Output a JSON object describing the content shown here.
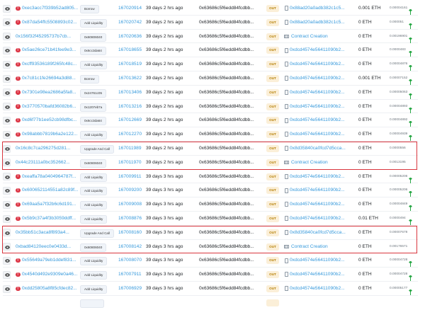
{
  "colors": {
    "link": "#3498db",
    "error": "#dc3545",
    "out_badge_bg": "#fbefd8",
    "out_badge_text": "#b47d00",
    "highlight": "#d9363e",
    "gas_icon": "#28a745"
  },
  "direction_label": "OUT",
  "from_address": "0x63686c5f6edd84fcdbb...",
  "highlighted_rows": [
    [
      10,
      11
    ],
    [
      16,
      17
    ]
  ],
  "rows": [
    {
      "error": true,
      "hash": "0xec3acc7f339b52ad805...",
      "method": "Borrow",
      "block": "167020914",
      "age": "39 days 2 hrs ago",
      "to": "0x88ad20a0adb382c1c5...",
      "to_type": "contract",
      "value": "0.001 ETH",
      "fee": "0.00004161",
      "gas_icon": true
    },
    {
      "error": true,
      "hash": "0x87da54ffc5508893c02...",
      "method": "Add Liquidity",
      "block": "167020742",
      "age": "39 days 2 hrs ago",
      "to": "0x88ad20a0adb382c1c5...",
      "to_type": "contract",
      "value": "0 ETH",
      "fee": "0.000051",
      "gas_icon": true
    },
    {
      "error": false,
      "hash": "0x156f32f45295737b7cb...",
      "method": "0x60806040",
      "block": "167020636",
      "age": "39 days 2 hrs ago",
      "to": "Contract Creation",
      "to_type": "creation",
      "value": "0 ETH",
      "fee": "0.00196901",
      "gas_icon": true
    },
    {
      "error": true,
      "hash": "0x5ae26ce71b41fee9e3...",
      "method": "0x6cc3da64",
      "block": "167018655",
      "age": "39 days 2 hrs ago",
      "to": "0xdcd4574e56411090b2...",
      "to_type": "contract",
      "value": "0 ETH",
      "fee": "0.0000483",
      "gas_icon": true
    },
    {
      "error": true,
      "hash": "0xcff93536189f265fc48c...",
      "method": "Add Liquidity",
      "block": "167018519",
      "age": "39 days 2 hrs ago",
      "to": "0xdcd4574e56411090b2...",
      "to_type": "contract",
      "value": "0 ETH",
      "fee": "0.00004876",
      "gas_icon": true
    },
    {
      "error": true,
      "hash": "0x7c81c1fe26694a3d88...",
      "method": "Borrow",
      "block": "167013622",
      "age": "39 days 2 hrs ago",
      "to": "0xdcd4574e56411090b2...",
      "to_type": "contract",
      "value": "0.001 ETH",
      "fee": "0.00007152",
      "gas_icon": true
    },
    {
      "error": true,
      "hash": "0x7301e98ea2686a5fa8...",
      "method": "0x24761c05",
      "block": "167013406",
      "age": "39 days 2 hrs ago",
      "to": "0xdcd4574e56411090b2...",
      "to_type": "contract",
      "value": "0 ETH",
      "fee": "0.00005063",
      "gas_icon": true
    },
    {
      "error": true,
      "hash": "0x3770570bafd36082b6...",
      "method": "0x1207eb7a",
      "block": "167013216",
      "age": "39 days 2 hrs ago",
      "to": "0xdcd4574e56411090b2...",
      "to_type": "contract",
      "value": "0 ETH",
      "fee": "0.00004893",
      "gas_icon": true
    },
    {
      "error": true,
      "hash": "0xd6f77b1ee52cb98dfbc...",
      "method": "0x6cc3da64",
      "block": "167012669",
      "age": "39 days 2 hrs ago",
      "to": "0xdcd4574e56411090b2...",
      "to_type": "contract",
      "value": "0 ETH",
      "fee": "0.00004892",
      "gas_icon": true
    },
    {
      "error": true,
      "hash": "0x98abbb7819b6a2e122...",
      "method": "Add Liquidity",
      "block": "167012270",
      "age": "39 days 2 hrs ago",
      "to": "0xdcd4574e56411090b2...",
      "to_type": "contract",
      "value": "0 ETH",
      "fee": "0.00004939",
      "gas_icon": true
    },
    {
      "error": false,
      "hash": "0x16c8c7ca296275d281...",
      "method": "Upgrade And Call",
      "block": "167011989",
      "age": "39 days 2 hrs ago",
      "to": "0x8d35840ca0fcd7d5cca...",
      "to_type": "contract",
      "value": "0 ETH",
      "fee": "0.0000556",
      "gas_icon": false
    },
    {
      "error": false,
      "hash": "0x44c23111a0bc352662...",
      "method": "0x60806040",
      "block": "167011970",
      "age": "39 days 2 hrs ago",
      "to": "Contract Creation",
      "to_type": "creation",
      "value": "0 ETH",
      "fee": "0.0013195",
      "gas_icon": false
    },
    {
      "error": true,
      "hash": "0xeaffa78a0404964787f...",
      "method": "Add Liquidity",
      "block": "167009911",
      "age": "39 days 3 hrs ago",
      "to": "0xdcd4574e56411090b2...",
      "to_type": "contract",
      "value": "0 ETH",
      "fee": "0.00005206",
      "gas_icon": true
    },
    {
      "error": true,
      "hash": "0x600652114551a82c89f...",
      "method": "Add Liquidity",
      "block": "167009200",
      "age": "39 days 3 hrs ago",
      "to": "0xdcd4574e56411090b2...",
      "to_type": "contract",
      "value": "0 ETH",
      "fee": "0.00005206",
      "gas_icon": true
    },
    {
      "error": true,
      "hash": "0x69aa5a7f32b6c6d191...",
      "method": "Add Liquidity",
      "block": "167009008",
      "age": "39 days 3 hrs ago",
      "to": "0xdcd4574e56411090b2...",
      "to_type": "contract",
      "value": "0 ETH",
      "fee": "0.00004849",
      "gas_icon": true
    },
    {
      "error": true,
      "hash": "0x5b9c37a4f3b3059ddff...",
      "method": "Add Liquidity",
      "block": "167008876",
      "age": "39 days 3 hrs ago",
      "to": "0xdcd4574e56411090b2...",
      "to_type": "contract",
      "value": "0.01 ETH",
      "fee": "0.0000494",
      "gas_icon": true
    },
    {
      "error": false,
      "hash": "0x35bb51c3aca8f893a4...",
      "method": "Upgrade And Call",
      "block": "167008160",
      "age": "39 days 3 hrs ago",
      "to": "0x8d35840ca0fcd7d5cca...",
      "to_type": "contract",
      "value": "0 ETH",
      "fee": "0.00007678",
      "gas_icon": false
    },
    {
      "error": false,
      "hash": "0xbad84120eec0e0433d...",
      "method": "0x60806040",
      "block": "167008142",
      "age": "39 days 3 hrs ago",
      "to": "Contract Creation",
      "to_type": "creation",
      "value": "0 ETH",
      "fee": "0.00176571",
      "gas_icon": false
    },
    {
      "error": true,
      "hash": "0x55649a79eb1ddef831...",
      "method": "Add Liquidity",
      "block": "167008070",
      "age": "39 days 3 hrs ago",
      "to": "0xdcd4574e56411090b2...",
      "to_type": "contract",
      "value": "0 ETH",
      "fee": "0.00004728",
      "gas_icon": true
    },
    {
      "error": true,
      "hash": "0x4540d492e9309e0a46...",
      "method": "Add Liquidity",
      "block": "167007911",
      "age": "39 days 3 hrs ago",
      "to": "0xdcd4574e56411090b2...",
      "to_type": "contract",
      "value": "0 ETH",
      "fee": "0.00004728",
      "gas_icon": true
    },
    {
      "error": true,
      "hash": "0xdd25805a8f85cfdec82...",
      "method": "Add Liquidity",
      "block": "167006929",
      "age": "39 days 3 hrs ago",
      "to": "0xdcd4574e56411090b2...",
      "to_type": "contract",
      "value": "0 ETH",
      "fee": "0.00005177",
      "gas_icon": true
    }
  ]
}
